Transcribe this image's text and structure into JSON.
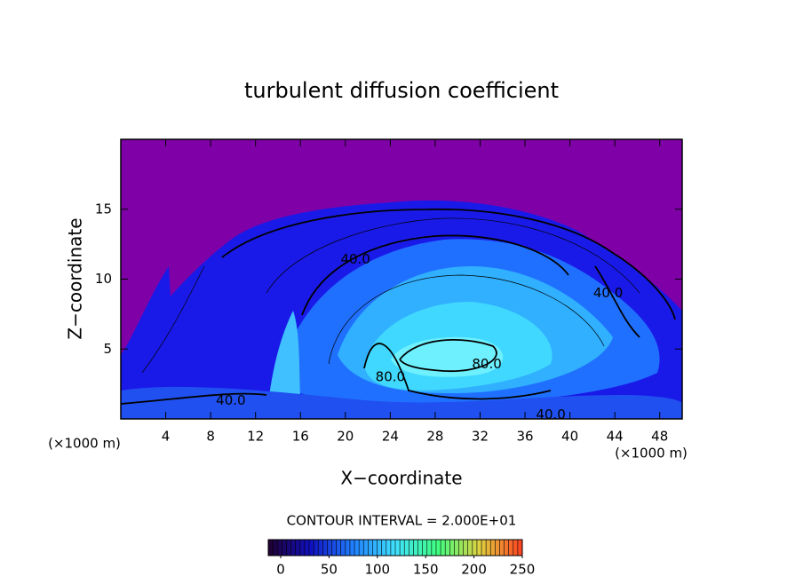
{
  "chart_data": {
    "type": "contour",
    "title": "turbulent diffusion coefficient",
    "x_label": "X−coordinate",
    "y_label": "Z−coordinate",
    "x_unit": "(×1000 m)",
    "x_unit_right": "(×1000 m)",
    "xlim": [
      0,
      50
    ],
    "ylim": [
      0,
      20
    ],
    "xticks": [
      4,
      8,
      12,
      16,
      20,
      24,
      28,
      32,
      36,
      40,
      44,
      48
    ],
    "yticks": [
      5,
      10,
      15
    ],
    "contour_labels": {
      "values": [
        40,
        40,
        40,
        40,
        80,
        80
      ],
      "value_labels": [
        "40.0",
        "40.0",
        "40.0",
        "40.0",
        "80.0",
        "80.0"
      ],
      "x": [
        20.9,
        43.4,
        9.8,
        38.3,
        24.0,
        32.6
      ],
      "y": [
        11.4,
        9.0,
        1.3,
        0.3,
        3.0,
        3.9
      ]
    },
    "colorbar": {
      "title": "CONTOUR INTERVAL = 2.000E+01",
      "lim": [
        0,
        250
      ],
      "ticks": [
        0,
        50,
        100,
        150,
        200,
        250
      ],
      "colors": [
        "#200030",
        "#1010c0",
        "#2080ff",
        "#40e0ff",
        "#40ff80",
        "#e0d040",
        "#ff4020"
      ]
    }
  }
}
